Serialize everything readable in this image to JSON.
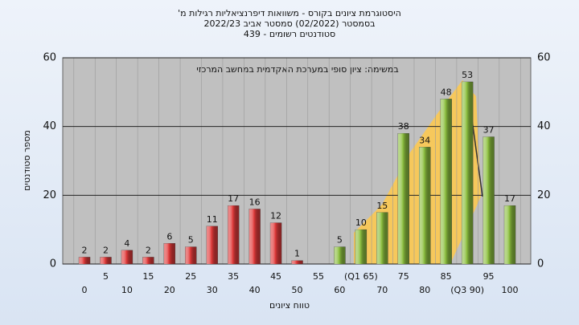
{
  "chart_data": {
    "type": "bar",
    "title": [
      "היסטוגרמת ציונים בקורס - משוואות דיפרנציאליות רגילות מ'",
      "בסמסטר (02/2022) סמסטר אביב 2022/23",
      "סטודנטים רשומים - 439"
    ],
    "annotation": "במשימה: ציון סופי במערכת האקדמית במחשב המרכזי",
    "xlabel": "טווח ציונים",
    "ylabel": "מספר סטודנטים",
    "categories": [
      "0",
      "5",
      "10",
      "15",
      "20",
      "25",
      "30",
      "35",
      "40",
      "45",
      "50",
      "55",
      "60",
      "(Q1 65)",
      "70",
      "75",
      "80",
      "85",
      "(Q3 90)",
      "95",
      "100"
    ],
    "values": [
      2,
      2,
      4,
      2,
      6,
      5,
      11,
      17,
      16,
      12,
      1,
      null,
      5,
      10,
      15,
      38,
      34,
      48,
      53,
      37,
      17
    ],
    "bar_colors": [
      "#e03a3a",
      "#e03a3a",
      "#e03a3a",
      "#e03a3a",
      "#e03a3a",
      "#e03a3a",
      "#e03a3a",
      "#e03a3a",
      "#e03a3a",
      "#e03a3a",
      "#e03a3a",
      "#e03a3a",
      "#8cbf3f",
      "#8cbf3f",
      "#8cbf3f",
      "#8cbf3f",
      "#8cbf3f",
      "#8cbf3f",
      "#8cbf3f",
      "#8cbf3f",
      "#8cbf3f"
    ],
    "ylim": [
      0,
      60
    ],
    "yticks": [
      0,
      20,
      40,
      60
    ],
    "grid": true
  }
}
